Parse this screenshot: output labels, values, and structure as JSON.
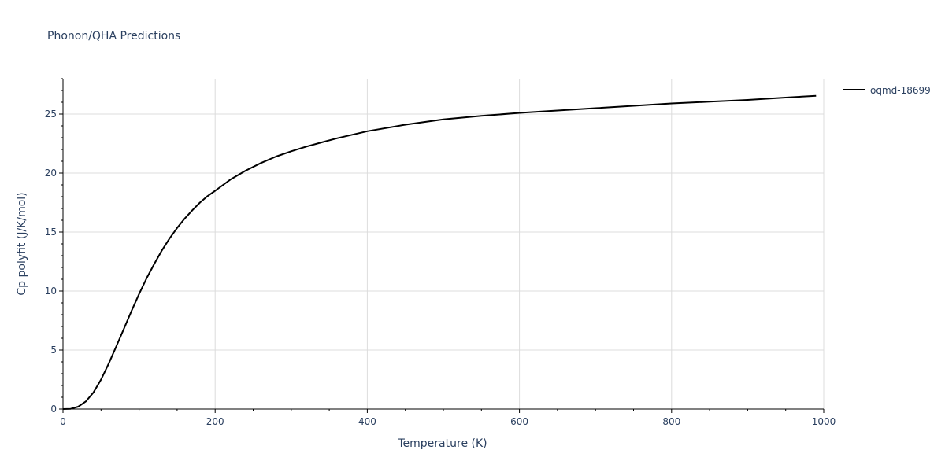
{
  "title": "Phonon/QHA Predictions",
  "chart_data": {
    "type": "line",
    "title": "Phonon/QHA Predictions",
    "xlabel": "Temperature (K)",
    "ylabel": "Cp polyfit (J/K/mol)",
    "xlim": [
      0,
      1000
    ],
    "ylim": [
      0,
      28
    ],
    "x_ticks": [
      0,
      200,
      400,
      600,
      800,
      1000
    ],
    "y_ticks": [
      0,
      5,
      10,
      15,
      20,
      25
    ],
    "grid": true,
    "legend_position": "top-right",
    "series": [
      {
        "name": "oqmd-18699",
        "color": "#000000",
        "x": [
          0,
          10,
          20,
          30,
          40,
          50,
          60,
          70,
          80,
          90,
          100,
          110,
          120,
          130,
          140,
          150,
          160,
          170,
          180,
          190,
          200,
          220,
          240,
          260,
          280,
          300,
          320,
          340,
          360,
          380,
          400,
          450,
          500,
          550,
          600,
          650,
          700,
          750,
          800,
          850,
          900,
          950,
          990
        ],
        "y": [
          0,
          0.02,
          0.2,
          0.65,
          1.4,
          2.5,
          3.85,
          5.3,
          6.8,
          8.3,
          9.75,
          11.1,
          12.3,
          13.45,
          14.45,
          15.35,
          16.15,
          16.85,
          17.5,
          18.05,
          18.5,
          19.45,
          20.2,
          20.85,
          21.4,
          21.85,
          22.25,
          22.6,
          22.95,
          23.25,
          23.55,
          24.1,
          24.55,
          24.85,
          25.1,
          25.3,
          25.5,
          25.7,
          25.9,
          26.05,
          26.2,
          26.4,
          26.55
        ]
      }
    ]
  }
}
